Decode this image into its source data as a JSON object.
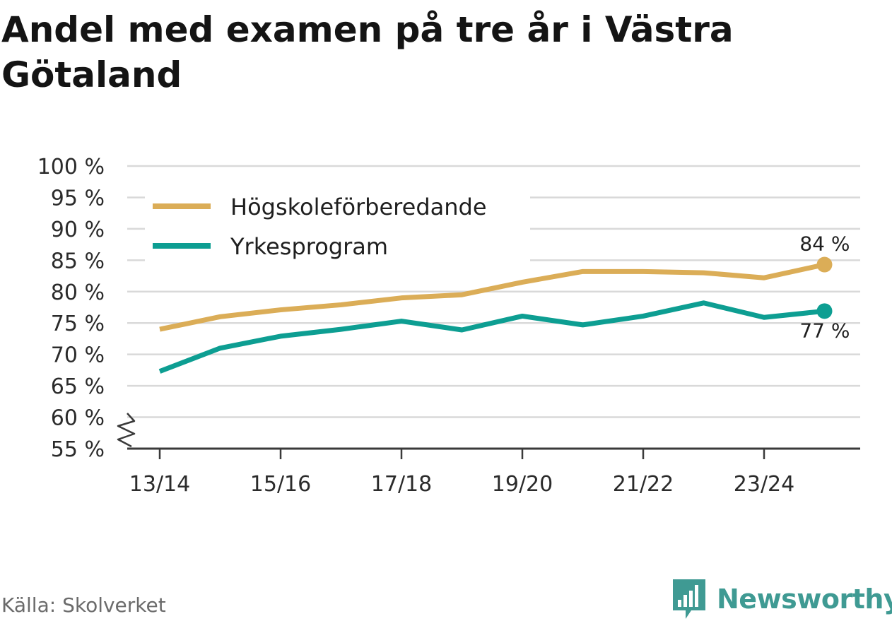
{
  "title": "Andel med examen på tre år i Västra Götaland",
  "source": "Källa: Skolverket",
  "brand": {
    "name": "Newsworthy",
    "logo_icon": "bar-chart-speech-bubble-icon",
    "color": "#3f9a93"
  },
  "chart_data": {
    "type": "line",
    "x": [
      "13/14",
      "14/15",
      "15/16",
      "16/17",
      "17/18",
      "18/19",
      "19/20",
      "20/21",
      "21/22",
      "22/23",
      "23/24",
      "24/25"
    ],
    "x_tick_labels": [
      "13/14",
      "15/16",
      "17/18",
      "19/20",
      "21/22",
      "23/24"
    ],
    "x_tick_positions": [
      "13/14",
      "15/16",
      "17/18",
      "19/20",
      "21/22",
      "23/24"
    ],
    "y_ticks": [
      55,
      60,
      65,
      70,
      75,
      80,
      85,
      90,
      95,
      100
    ],
    "y_tick_labels": [
      "55 %",
      "60 %",
      "65 %",
      "70 %",
      "75 %",
      "80 %",
      "85 %",
      "90 %",
      "95 %",
      "100 %"
    ],
    "ylim": [
      55,
      100
    ],
    "y_axis_break": true,
    "grid": "horizontal",
    "legend_position": "top-left",
    "series": [
      {
        "name": "Högskoleförberedande",
        "color": "#dbad57",
        "values": [
          74,
          76,
          77.1,
          77.9,
          79,
          79.5,
          81.5,
          83.2,
          83.2,
          83,
          82.2,
          84.3
        ],
        "end_label": "84 %"
      },
      {
        "name": "Yrkesprogram",
        "color": "#0d9e92",
        "values": [
          67.3,
          71,
          72.9,
          74,
          75.3,
          73.9,
          76.1,
          74.7,
          76.1,
          78.2,
          75.9,
          76.9
        ],
        "end_label": "77 %"
      }
    ]
  }
}
